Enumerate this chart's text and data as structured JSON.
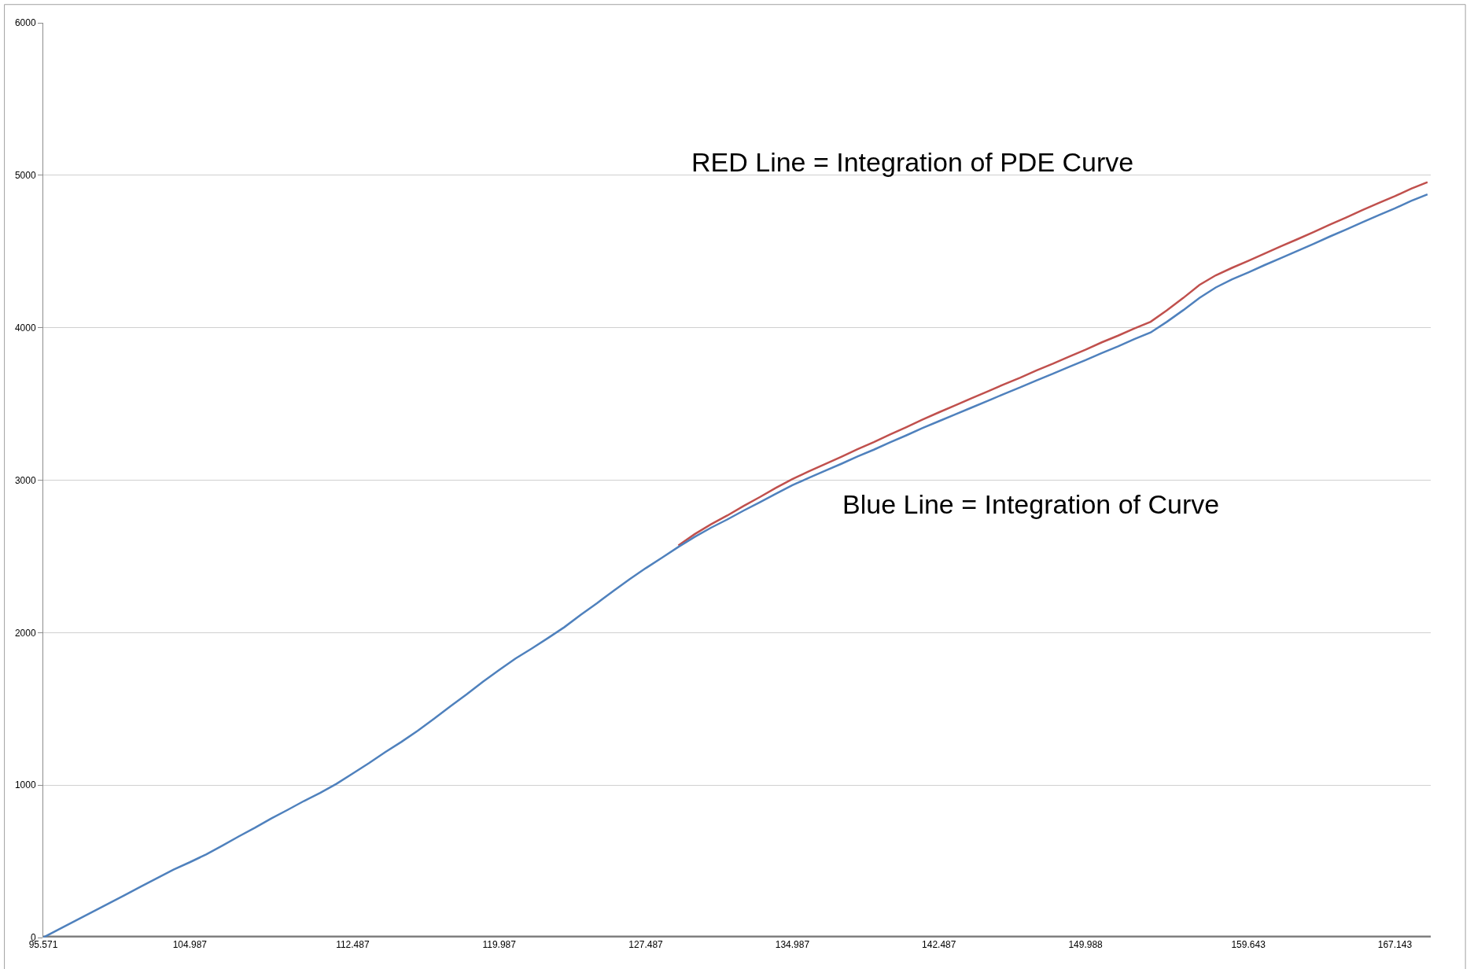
{
  "chart_data": {
    "type": "line",
    "categories": [
      "95.571",
      null,
      null,
      null,
      null,
      null,
      null,
      null,
      null,
      "104.987",
      null,
      null,
      null,
      null,
      null,
      null,
      null,
      null,
      null,
      "112.487",
      null,
      null,
      null,
      null,
      null,
      null,
      null,
      null,
      "119.987",
      null,
      null,
      null,
      null,
      null,
      null,
      null,
      null,
      "127.487",
      null,
      null,
      null,
      null,
      null,
      null,
      null,
      null,
      "134.987",
      null,
      null,
      null,
      null,
      null,
      null,
      null,
      null,
      "142.487",
      null,
      null,
      null,
      null,
      null,
      null,
      null,
      null,
      "149.988",
      null,
      null,
      null,
      null,
      null,
      null,
      null,
      null,
      null,
      "159.643",
      null,
      null,
      null,
      null,
      null,
      null,
      null,
      null,
      "167.143",
      null,
      null
    ],
    "series": [
      {
        "color": "#c0504d",
        "values": [
          null,
          null,
          null,
          null,
          null,
          null,
          null,
          null,
          null,
          null,
          null,
          null,
          null,
          null,
          null,
          null,
          null,
          null,
          null,
          null,
          null,
          null,
          null,
          null,
          null,
          null,
          null,
          null,
          null,
          null,
          null,
          null,
          null,
          null,
          null,
          null,
          null,
          null,
          null,
          2572,
          2646,
          2710,
          2768,
          2830,
          2889,
          2950,
          3007,
          3057,
          3105,
          3153,
          3203,
          3250,
          3300,
          3348,
          3398,
          3445,
          3491,
          3537,
          3582,
          3629,
          3673,
          3720,
          3764,
          3811,
          3856,
          3904,
          3948,
          3995,
          4039,
          4114,
          4195,
          4281,
          4344,
          4393,
          4439,
          4487,
          4534,
          4580,
          4627,
          4676,
          4723,
          4772,
          4818,
          4863,
          4912,
          4955
        ]
      },
      {
        "color": "#4f81bd",
        "values": [
          0,
          56,
          112,
          167,
          223,
          278,
          335,
          390,
          446,
          494,
          545,
          603,
          663,
          720,
          781,
          837,
          895,
          949,
          1008,
          1076,
          1144,
          1216,
          1284,
          1357,
          1435,
          1517,
          1595,
          1678,
          1755,
          1830,
          1896,
          1965,
          2036,
          2117,
          2193,
          2273,
          2350,
          2423,
          2492,
          2562,
          2628,
          2688,
          2742,
          2800,
          2855,
          2912,
          2967,
          3015,
          3061,
          3107,
          3155,
          3200,
          3248,
          3294,
          3342,
          3387,
          3431,
          3476,
          3520,
          3566,
          3609,
          3655,
          3698,
          3744,
          3787,
          3834,
          3878,
          3925,
          3969,
          4039,
          4115,
          4196,
          4264,
          4317,
          4363,
          4411,
          4457,
          4503,
          4550,
          4598,
          4644,
          4692,
          4738,
          4783,
          4832,
          4875
        ]
      }
    ],
    "ylim": [
      0,
      6000
    ],
    "yticks": [
      0,
      1000,
      2000,
      3000,
      4000,
      5000,
      6000
    ],
    "grid": "y",
    "annotations": [
      "RED Line = Integration of PDE Curve",
      "Blue Line = Integration of Curve"
    ]
  }
}
